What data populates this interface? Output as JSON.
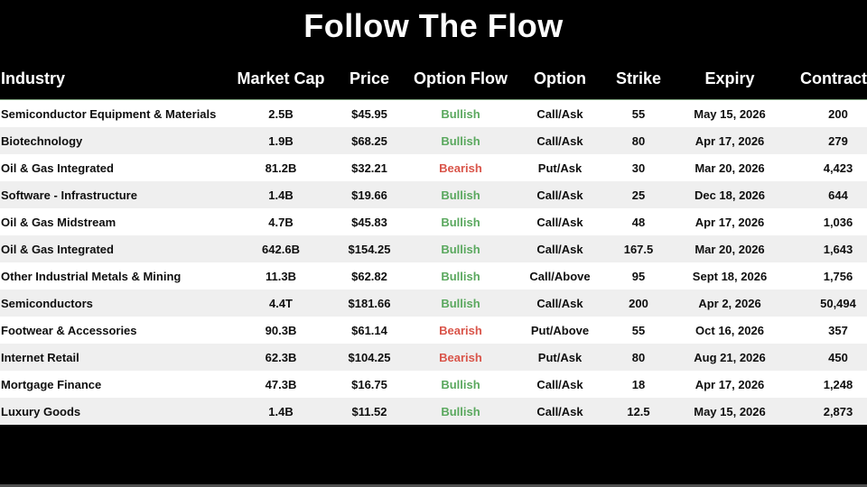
{
  "page": {
    "title": "Follow The Flow"
  },
  "colors": {
    "background": "#000000",
    "header_text": "#ffffff",
    "body_text": "#0e0e0e",
    "row_alt": "#efefef",
    "bullish": "#5aa85e",
    "bearish": "#d95449",
    "divider_green": "#7fa37f",
    "bottom_strip": "#4f4f4f"
  },
  "chart_data": {
    "type": "table",
    "title": "Follow The Flow",
    "columns": [
      "Industry",
      "Market Cap",
      "Price",
      "Option Flow",
      "Option",
      "Strike",
      "Expiry",
      "Contracts"
    ],
    "rows": [
      {
        "industry": "Semiconductor Equipment & Materials",
        "market_cap": "2.5B",
        "price": "$45.95",
        "flow": "Bullish",
        "option": "Call/Ask",
        "strike": "55",
        "expiry": "May 15, 2026",
        "contracts": "200"
      },
      {
        "industry": "Biotechnology",
        "market_cap": "1.9B",
        "price": "$68.25",
        "flow": "Bullish",
        "option": "Call/Ask",
        "strike": "80",
        "expiry": "Apr 17, 2026",
        "contracts": "279"
      },
      {
        "industry": "Oil & Gas Integrated",
        "market_cap": "81.2B",
        "price": "$32.21",
        "flow": "Bearish",
        "option": "Put/Ask",
        "strike": "30",
        "expiry": "Mar 20, 2026",
        "contracts": "4,423"
      },
      {
        "industry": "Software - Infrastructure",
        "market_cap": "1.4B",
        "price": "$19.66",
        "flow": "Bullish",
        "option": "Call/Ask",
        "strike": "25",
        "expiry": "Dec 18, 2026",
        "contracts": "644"
      },
      {
        "industry": "Oil & Gas Midstream",
        "market_cap": "4.7B",
        "price": "$45.83",
        "flow": "Bullish",
        "option": "Call/Ask",
        "strike": "48",
        "expiry": "Apr 17, 2026",
        "contracts": "1,036"
      },
      {
        "industry": "Oil & Gas Integrated",
        "market_cap": "642.6B",
        "price": "$154.25",
        "flow": "Bullish",
        "option": "Call/Ask",
        "strike": "167.5",
        "expiry": "Mar 20, 2026",
        "contracts": "1,643"
      },
      {
        "industry": "Other Industrial Metals & Mining",
        "market_cap": "11.3B",
        "price": "$62.82",
        "flow": "Bullish",
        "option": "Call/Above",
        "strike": "95",
        "expiry": "Sept 18, 2026",
        "contracts": "1,756"
      },
      {
        "industry": "Semiconductors",
        "market_cap": "4.4T",
        "price": "$181.66",
        "flow": "Bullish",
        "option": "Call/Ask",
        "strike": "200",
        "expiry": "Apr 2, 2026",
        "contracts": "50,494"
      },
      {
        "industry": "Footwear & Accessories",
        "market_cap": "90.3B",
        "price": "$61.14",
        "flow": "Bearish",
        "option": "Put/Above",
        "strike": "55",
        "expiry": "Oct 16, 2026",
        "contracts": "357"
      },
      {
        "industry": "Internet Retail",
        "market_cap": "62.3B",
        "price": "$104.25",
        "flow": "Bearish",
        "option": "Put/Ask",
        "strike": "80",
        "expiry": "Aug 21, 2026",
        "contracts": "450"
      },
      {
        "industry": "Mortgage Finance",
        "market_cap": "47.3B",
        "price": "$16.75",
        "flow": "Bullish",
        "option": "Call/Ask",
        "strike": "18",
        "expiry": "Apr 17, 2026",
        "contracts": "1,248"
      },
      {
        "industry": "Luxury Goods",
        "market_cap": "1.4B",
        "price": "$11.52",
        "flow": "Bullish",
        "option": "Call/Ask",
        "strike": "12.5",
        "expiry": "May 15, 2026",
        "contracts": "2,873"
      }
    ]
  }
}
